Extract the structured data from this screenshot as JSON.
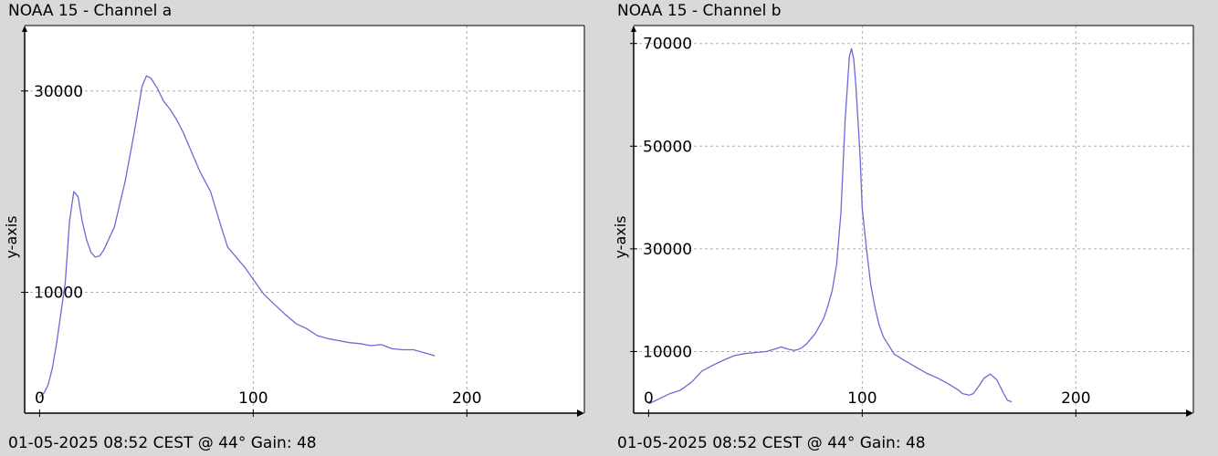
{
  "panels": [
    {
      "title": "NOAA 15 - Channel a",
      "footer": "01-05-2025 08:52 CEST @ 44° Gain: 48"
    },
    {
      "title": "NOAA 15 - Channel b",
      "footer": "01-05-2025 08:52 CEST @ 44° Gain: 48"
    }
  ],
  "colors": {
    "background": "#d9d9d9",
    "plot_area": "#ffffff",
    "line": "#6b6bd6",
    "grid": "#b0b0b0",
    "axis": "#000000"
  },
  "chart_data": [
    {
      "type": "line",
      "title": "NOAA 15 - Channel a",
      "xlabel": "",
      "ylabel": "y-axis",
      "xlim": [
        -7,
        255
      ],
      "ylim": [
        -2000,
        36500
      ],
      "x_ticks": [
        0,
        100,
        200
      ],
      "y_ticks": [
        10000,
        30000
      ],
      "grid": true,
      "x_tick_labels": [
        "0",
        "100",
        "200"
      ],
      "y_tick_labels": [
        "10000",
        "30000"
      ],
      "series": [
        {
          "x": [
            0,
            2,
            4,
            6,
            8,
            10,
            12,
            14,
            16,
            18,
            20,
            22,
            24,
            26,
            28,
            30,
            35,
            40,
            44,
            46,
            48,
            50,
            52,
            55,
            58,
            61,
            64,
            67,
            70,
            75,
            80,
            85,
            88,
            92,
            96,
            100,
            105,
            110,
            115,
            120,
            125,
            130,
            135,
            140,
            145,
            150,
            155,
            160,
            165,
            170,
            175,
            180,
            185
          ],
          "y": [
            -400,
            0,
            800,
            2500,
            5000,
            8000,
            11000,
            17000,
            20000,
            19500,
            17000,
            15200,
            14000,
            13500,
            13600,
            14200,
            16500,
            21000,
            25500,
            28000,
            30500,
            31500,
            31300,
            30300,
            29000,
            28200,
            27200,
            26000,
            24500,
            22000,
            20000,
            16500,
            14500,
            13500,
            12500,
            11300,
            9800,
            8800,
            7800,
            6900,
            6400,
            5700,
            5400,
            5200,
            5000,
            4900,
            4700,
            4800,
            4400,
            4300,
            4300,
            4000,
            3700
          ]
        }
      ]
    },
    {
      "type": "line",
      "title": "NOAA 15 - Channel b",
      "xlabel": "",
      "ylabel": "y-axis",
      "xlim": [
        -7,
        255
      ],
      "ylim": [
        -2000,
        73500
      ],
      "x_ticks": [
        0,
        100,
        200
      ],
      "y_ticks": [
        10000,
        30000,
        50000,
        70000
      ],
      "grid": true,
      "x_tick_labels": [
        "0",
        "100",
        "200"
      ],
      "y_tick_labels": [
        "10000",
        "30000",
        "50000",
        "70000"
      ],
      "series": [
        {
          "x": [
            0,
            5,
            10,
            15,
            20,
            25,
            30,
            35,
            40,
            45,
            50,
            55,
            60,
            62,
            65,
            68,
            70,
            72,
            74,
            76,
            78,
            80,
            82,
            84,
            86,
            88,
            90,
            92,
            94,
            95,
            96,
            97,
            98,
            99,
            100,
            102,
            104,
            106,
            108,
            110,
            115,
            120,
            125,
            130,
            135,
            140,
            145,
            147,
            150,
            152,
            155,
            157,
            160,
            163,
            166,
            168,
            170
          ],
          "y": [
            -200,
            800,
            1800,
            2500,
            4000,
            6200,
            7300,
            8300,
            9200,
            9600,
            9800,
            10000,
            10600,
            10900,
            10500,
            10200,
            10400,
            10800,
            11500,
            12500,
            13500,
            15000,
            16500,
            19000,
            22000,
            27000,
            37000,
            55000,
            67500,
            69000,
            67000,
            62000,
            55000,
            48000,
            38000,
            30000,
            23000,
            18500,
            15000,
            12800,
            9500,
            8200,
            7000,
            5800,
            4900,
            3800,
            2500,
            1800,
            1500,
            1800,
            3500,
            4800,
            5600,
            4500,
            2000,
            500,
            200
          ]
        }
      ]
    }
  ]
}
